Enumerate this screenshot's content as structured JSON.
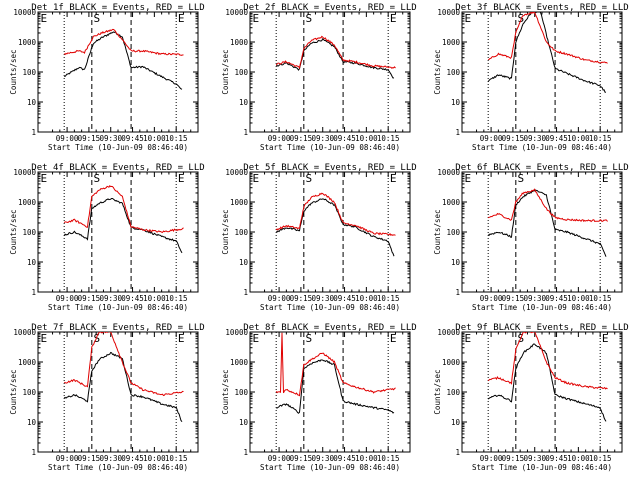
{
  "colors": {
    "events": "#000000",
    "lld": "#e00000",
    "axes": "#000000",
    "background": "#ffffff"
  },
  "common": {
    "ylabel": "Counts/sec",
    "xlabel": "Start Time (10-Jun-09 08:46:40)",
    "xticks": [
      "09:00",
      "09:15",
      "09:30",
      "09:45",
      "10:00",
      "10:15"
    ],
    "yticks": [
      "1",
      "10",
      "100",
      "1000",
      "10000"
    ]
  },
  "chart_data": [
    {
      "type": "line",
      "title": "Det 1f BLACK = Events, RED = LLD",
      "xlabel": "Start Time (10-Jun-09 08:46:40)",
      "ylabel": "Counts/sec",
      "yscale": "log",
      "ylim": [
        1,
        10000
      ],
      "markers": [
        "E",
        "S",
        "E"
      ],
      "series": [
        {
          "key": "events",
          "x": [
            "08:58",
            "09:08",
            "09:12",
            "09:18",
            "09:24",
            "09:32",
            "09:38",
            "09:44",
            "09:52",
            "10:05",
            "10:15",
            "10:19"
          ],
          "values": [
            70,
            140,
            120,
            900,
            1400,
            2200,
            1500,
            140,
            150,
            70,
            40,
            25
          ]
        },
        {
          "key": "lld",
          "x": [
            "08:58",
            "09:08",
            "09:12",
            "09:18",
            "09:24",
            "09:32",
            "09:38",
            "09:44",
            "09:52",
            "10:05",
            "10:20"
          ],
          "values": [
            400,
            500,
            450,
            1500,
            2000,
            2600,
            1200,
            500,
            500,
            400,
            380
          ]
        }
      ]
    },
    {
      "type": "line",
      "title": "Det 2f BLACK = Events, RED = LLD",
      "xlabel": "Start Time (10-Jun-09 08:46:40)",
      "ylabel": "Counts/sec",
      "yscale": "log",
      "ylim": [
        1,
        10000
      ],
      "markers": [
        "E",
        "S",
        "E"
      ],
      "series": [
        {
          "key": "events",
          "x": [
            "08:58",
            "09:05",
            "09:14",
            "09:17",
            "09:22",
            "09:30",
            "09:38",
            "09:44",
            "09:52",
            "10:05",
            "10:15",
            "10:19"
          ],
          "values": [
            160,
            200,
            120,
            500,
            900,
            1200,
            700,
            220,
            200,
            140,
            120,
            60
          ]
        },
        {
          "key": "lld",
          "x": [
            "08:58",
            "09:05",
            "09:14",
            "09:17",
            "09:22",
            "09:30",
            "09:38",
            "09:44",
            "09:52",
            "10:05",
            "10:20"
          ],
          "values": [
            180,
            220,
            140,
            600,
            1100,
            1500,
            800,
            250,
            220,
            160,
            140
          ]
        }
      ]
    },
    {
      "type": "line",
      "title": "Det 3f BLACK = Events, RED = LLD",
      "xlabel": "Start Time (10-Jun-09 08:46:40)",
      "ylabel": "Counts/sec",
      "yscale": "log",
      "ylim": [
        1,
        10000
      ],
      "markers": [
        "E",
        "S",
        "E"
      ],
      "series": [
        {
          "key": "events",
          "x": [
            "08:58",
            "09:05",
            "09:14",
            "09:17",
            "09:22",
            "09:28",
            "09:34",
            "09:44",
            "09:52",
            "10:05",
            "10:15",
            "10:19"
          ],
          "values": [
            50,
            80,
            60,
            1000,
            4000,
            10000,
            10000,
            130,
            90,
            50,
            35,
            20
          ]
        },
        {
          "key": "lld",
          "x": [
            "08:58",
            "09:05",
            "09:14",
            "09:17",
            "09:22",
            "09:30",
            "09:38",
            "09:44",
            "09:52",
            "10:05",
            "10:20"
          ],
          "values": [
            250,
            400,
            300,
            2000,
            8000,
            10000,
            1000,
            500,
            400,
            250,
            200
          ]
        }
      ]
    },
    {
      "type": "line",
      "title": "Det 4f BLACK = Events, RED = LLD",
      "xlabel": "Start Time (10-Jun-09 08:46:40)",
      "ylabel": "Counts/sec",
      "yscale": "log",
      "ylim": [
        1,
        10000
      ],
      "markers": [
        "E",
        "S",
        "E"
      ],
      "series": [
        {
          "key": "events",
          "x": [
            "08:58",
            "09:05",
            "09:14",
            "09:17",
            "09:22",
            "09:30",
            "09:38",
            "09:44",
            "09:52",
            "10:05",
            "10:15",
            "10:19"
          ],
          "values": [
            80,
            100,
            60,
            600,
            900,
            1300,
            900,
            140,
            120,
            70,
            50,
            20
          ]
        },
        {
          "key": "lld",
          "x": [
            "08:58",
            "09:05",
            "09:14",
            "09:17",
            "09:22",
            "09:30",
            "09:38",
            "09:44",
            "09:52",
            "10:05",
            "10:20"
          ],
          "values": [
            200,
            250,
            150,
            1500,
            2500,
            3500,
            1500,
            150,
            120,
            100,
            130
          ]
        }
      ]
    },
    {
      "type": "line",
      "title": "Det 5f BLACK = Events, RED = LLD",
      "xlabel": "Start Time (10-Jun-09 08:46:40)",
      "ylabel": "Counts/sec",
      "yscale": "log",
      "ylim": [
        1,
        10000
      ],
      "markers": [
        "E",
        "S",
        "E"
      ],
      "series": [
        {
          "key": "events",
          "x": [
            "08:58",
            "09:05",
            "09:14",
            "09:17",
            "09:22",
            "09:30",
            "09:38",
            "09:44",
            "09:52",
            "10:05",
            "10:15",
            "10:19"
          ],
          "values": [
            100,
            140,
            110,
            500,
            900,
            1300,
            800,
            180,
            150,
            70,
            50,
            15
          ]
        },
        {
          "key": "lld",
          "x": [
            "08:58",
            "09:05",
            "09:14",
            "09:17",
            "09:22",
            "09:30",
            "09:38",
            "09:44",
            "09:52",
            "10:05",
            "10:20"
          ],
          "values": [
            120,
            160,
            130,
            700,
            1400,
            2000,
            1000,
            200,
            170,
            90,
            80
          ]
        }
      ]
    },
    {
      "type": "line",
      "title": "Det 6f BLACK = Events, RED = LLD",
      "xlabel": "Start Time (10-Jun-09 08:46:40)",
      "ylabel": "Counts/sec",
      "yscale": "log",
      "ylim": [
        1,
        10000
      ],
      "markers": [
        "E",
        "S",
        "E"
      ],
      "series": [
        {
          "key": "events",
          "x": [
            "08:58",
            "09:05",
            "09:14",
            "09:17",
            "09:22",
            "09:30",
            "09:38",
            "09:44",
            "09:52",
            "10:05",
            "10:15",
            "10:19"
          ],
          "values": [
            80,
            100,
            70,
            800,
            1500,
            2500,
            1700,
            120,
            100,
            60,
            40,
            15
          ]
        },
        {
          "key": "lld",
          "x": [
            "08:58",
            "09:05",
            "09:14",
            "09:17",
            "09:22",
            "09:30",
            "09:38",
            "09:44",
            "09:52",
            "10:05",
            "10:20"
          ],
          "values": [
            300,
            400,
            250,
            1000,
            2000,
            2500,
            600,
            300,
            260,
            240,
            240
          ]
        }
      ]
    },
    {
      "type": "line",
      "title": "Det 7f BLACK = Events, RED = LLD",
      "xlabel": "Start Time (10-Jun-09 08:46:40)",
      "ylabel": "Counts/sec",
      "yscale": "log",
      "ylim": [
        1,
        10000
      ],
      "markers": [
        "E",
        "S",
        "E"
      ],
      "series": [
        {
          "key": "events",
          "x": [
            "08:58",
            "09:05",
            "09:14",
            "09:17",
            "09:22",
            "09:30",
            "09:38",
            "09:44",
            "09:52",
            "10:05",
            "10:15",
            "10:19"
          ],
          "values": [
            60,
            80,
            50,
            500,
            1200,
            2000,
            1300,
            80,
            70,
            40,
            30,
            10
          ]
        },
        {
          "key": "lld",
          "x": [
            "08:58",
            "09:05",
            "09:14",
            "09:17",
            "09:22",
            "09:30",
            "09:38",
            "09:44",
            "09:52",
            "10:05",
            "10:20"
          ],
          "values": [
            200,
            250,
            150,
            3000,
            10000,
            10000,
            1000,
            200,
            120,
            80,
            100
          ]
        }
      ]
    },
    {
      "type": "line",
      "title": "Det 8f BLACK = Events, RED = LLD",
      "xlabel": "Start Time (10-Jun-09 08:46:40)",
      "ylabel": "Counts/sec",
      "yscale": "log",
      "ylim": [
        1,
        10000
      ],
      "markers": [
        "E",
        "S",
        "E"
      ],
      "series": [
        {
          "key": "events",
          "x": [
            "08:58",
            "09:05",
            "09:14",
            "09:17",
            "09:22",
            "09:30",
            "09:38",
            "09:44",
            "09:52",
            "10:05",
            "10:15",
            "10:19"
          ],
          "values": [
            30,
            40,
            20,
            600,
            900,
            1200,
            800,
            50,
            40,
            30,
            25,
            20
          ]
        },
        {
          "key": "lld",
          "x": [
            "08:58",
            "09:01",
            "09:02",
            "09:03",
            "09:05",
            "09:14",
            "09:17",
            "09:22",
            "09:30",
            "09:38",
            "09:44",
            "09:52",
            "10:05",
            "10:20"
          ],
          "values": [
            100,
            100,
            10000,
            100,
            120,
            80,
            800,
            1200,
            2000,
            1000,
            200,
            150,
            100,
            130
          ]
        }
      ]
    },
    {
      "type": "line",
      "title": "Det 9f BLACK = Events, RED = LLD",
      "xlabel": "Start Time (10-Jun-09 08:46:40)",
      "ylabel": "Counts/sec",
      "yscale": "log",
      "ylim": [
        1,
        10000
      ],
      "markers": [
        "E",
        "S",
        "E"
      ],
      "series": [
        {
          "key": "events",
          "x": [
            "08:58",
            "09:05",
            "09:14",
            "09:17",
            "09:22",
            "09:30",
            "09:38",
            "09:44",
            "09:52",
            "10:05",
            "10:15",
            "10:19"
          ],
          "values": [
            60,
            80,
            50,
            600,
            2000,
            4000,
            2000,
            80,
            60,
            40,
            30,
            10
          ]
        },
        {
          "key": "lld",
          "x": [
            "08:58",
            "09:05",
            "09:14",
            "09:17",
            "09:22",
            "09:30",
            "09:38",
            "09:44",
            "09:52",
            "10:05",
            "10:20"
          ],
          "values": [
            250,
            300,
            200,
            2500,
            10000,
            10000,
            1000,
            300,
            200,
            150,
            130
          ]
        }
      ]
    }
  ]
}
